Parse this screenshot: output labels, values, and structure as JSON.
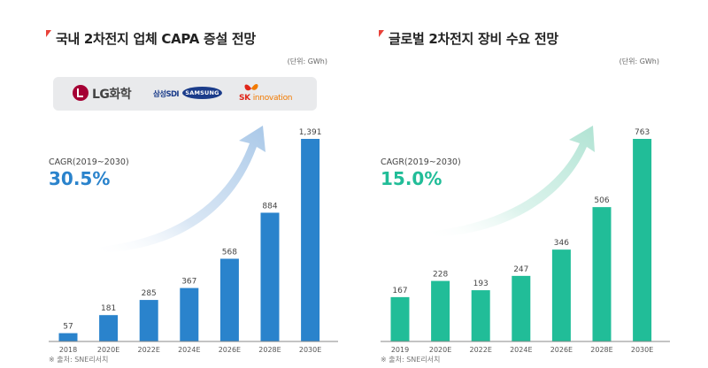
{
  "colors": {
    "left_bar": "#2a83cc",
    "right_bar": "#21bd98",
    "title_mark": "#e8423a",
    "left_cagr": "#2a83cc",
    "right_cagr": "#21bd98"
  },
  "left": {
    "title": "국내 2차전지 업체 CAPA 증설 전망",
    "unit": "(단위: GWh)",
    "cagr_label": "CAGR(2019~2030)",
    "cagr_value": "30.5%",
    "source": "※ 출처: SNE리서치",
    "logos": {
      "lg": "LG화학",
      "samsung_sdi": "삼성SDI",
      "samsung": "SAMSUNG",
      "sk": "SK",
      "sk_sub": "innovation"
    }
  },
  "right": {
    "title": "글로벌 2차전지 장비 수요 전망",
    "unit": "(단위: GWh)",
    "cagr_label": "CAGR(2019~2030)",
    "cagr_value": "15.0%",
    "source": "※ 출처: SNE리서치"
  },
  "chart_data": [
    {
      "type": "bar",
      "title": "국내 2차전지 업체 CAPA 증설 전망",
      "ylabel": "(단위: GWh)",
      "categories": [
        "2018",
        "2020E",
        "2022E",
        "2024E",
        "2026E",
        "2028E",
        "2030E"
      ],
      "values": [
        57,
        181,
        285,
        367,
        568,
        884,
        1391
      ],
      "ylim": [
        0,
        1450
      ],
      "grid": false,
      "legend": "none"
    },
    {
      "type": "bar",
      "title": "글로벌 2차전지 장비 수요 전망",
      "ylabel": "(단위: GWh)",
      "categories": [
        "2019",
        "2020E",
        "2022E",
        "2024E",
        "2026E",
        "2028E",
        "2030E"
      ],
      "values": [
        167,
        228,
        193,
        247,
        346,
        506,
        763
      ],
      "ylim": [
        0,
        790
      ],
      "grid": false,
      "legend": "none"
    }
  ]
}
